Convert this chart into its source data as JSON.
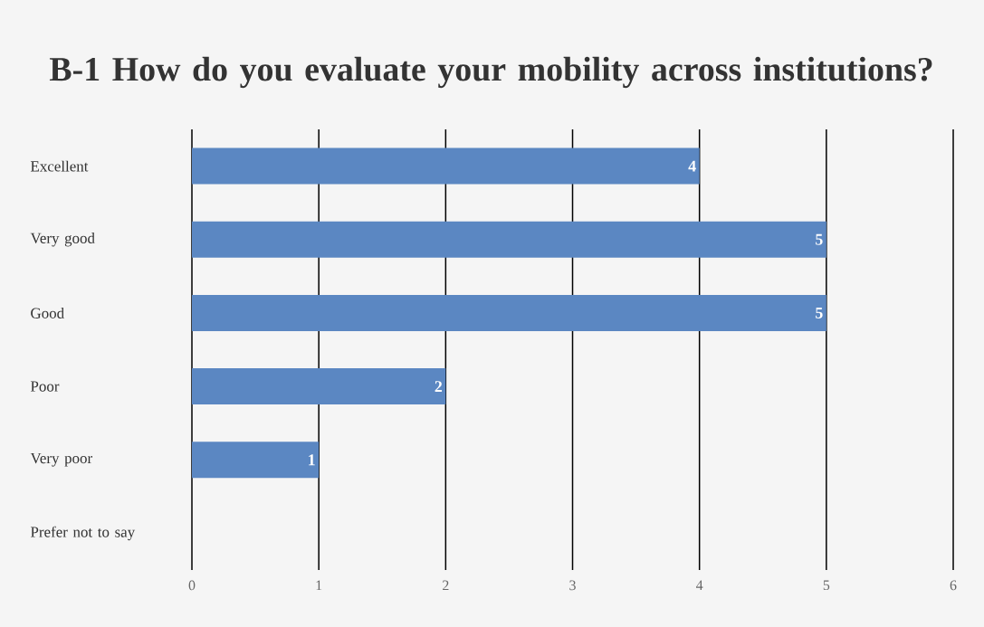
{
  "chart_data": {
    "type": "bar",
    "orientation": "horizontal",
    "title": "B-1 How do you evaluate your mobility across institutions?",
    "categories": [
      "Excellent",
      "Very good",
      "Good",
      "Poor",
      "Very poor",
      "Prefer not to say"
    ],
    "values": [
      4,
      5,
      5,
      2,
      1,
      0
    ],
    "value_labels": [
      "4",
      "5",
      "5",
      "2",
      "1",
      null
    ],
    "color": "#5b87c2",
    "xlim": [
      0,
      6
    ],
    "xticks": [
      0,
      1,
      2,
      3,
      4,
      5,
      6
    ],
    "grid": "x"
  }
}
